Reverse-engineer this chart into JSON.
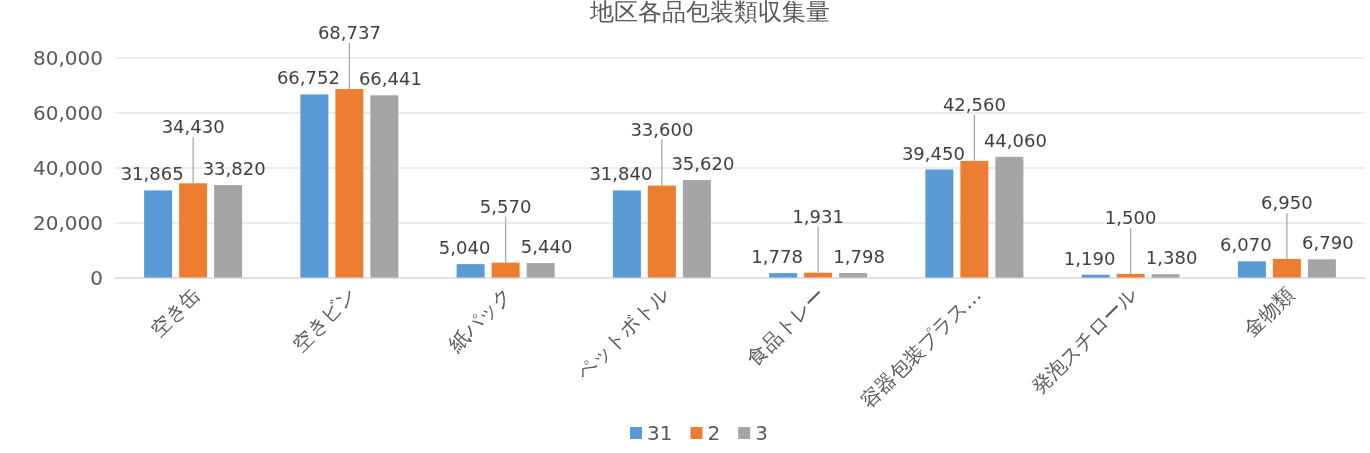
{
  "chart_data": {
    "type": "bar",
    "title": "地区各品包装類収集量",
    "categories": [
      "空き缶",
      "空きビン",
      "紙パック",
      "ペットボトル",
      "食品トレー",
      "容器包装プラス…",
      "発泡スチロール",
      "金物類"
    ],
    "series": [
      {
        "name": "31",
        "color": "#5b9bd5",
        "values": [
          31865,
          66752,
          5040,
          31840,
          1778,
          39450,
          1190,
          6070
        ],
        "value_labels": [
          "31,865",
          "66,752",
          "5,040",
          "31,840",
          "1,778",
          "39,450",
          "1,190",
          "6,070"
        ]
      },
      {
        "name": "2",
        "color": "#ed7d31",
        "values": [
          34430,
          68737,
          5570,
          33600,
          1931,
          42560,
          1500,
          6950
        ],
        "value_labels": [
          "34,430",
          "68,737",
          "5,570",
          "33,600",
          "1,931",
          "42,560",
          "1,500",
          "6,950"
        ]
      },
      {
        "name": "3",
        "color": "#a5a5a5",
        "values": [
          33820,
          66441,
          5440,
          35620,
          1798,
          44060,
          1380,
          6790
        ],
        "value_labels": [
          "33,820",
          "66,441",
          "5,440",
          "35,620",
          "1,798",
          "44,060",
          "1,380",
          "6,790"
        ]
      }
    ],
    "ylim": [
      0,
      80000
    ],
    "yticks": [
      {
        "value": 0,
        "label": "0"
      },
      {
        "value": 20000,
        "label": "20,000"
      },
      {
        "value": 40000,
        "label": "40,000"
      },
      {
        "value": 60000,
        "label": "60,000"
      },
      {
        "value": 80000,
        "label": "80,000"
      }
    ],
    "grid": "y",
    "legend": "bottom"
  }
}
